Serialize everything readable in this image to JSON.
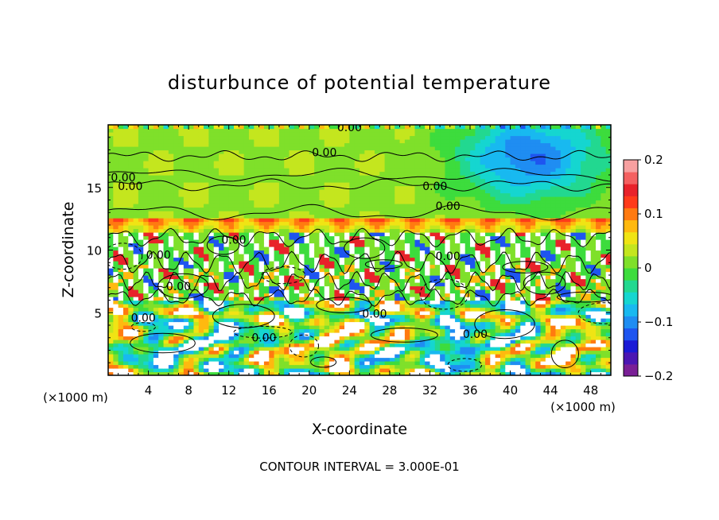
{
  "chart_data": {
    "type": "heatmap",
    "title": "disturbunce of potential temperature",
    "xlabel": "X-coordinate",
    "ylabel": "Z-coordinate",
    "x_unit_left": "(×1000 m)",
    "x_unit_right": "(×1000 m)",
    "footer": "CONTOUR INTERVAL = 3.000E-01",
    "xlim": [
      0,
      50
    ],
    "ylim": [
      0,
      20
    ],
    "x_ticks": [
      4,
      8,
      12,
      16,
      20,
      24,
      28,
      32,
      36,
      40,
      44,
      48
    ],
    "y_ticks": [
      5,
      10,
      15
    ],
    "colorbar": {
      "range": [
        -0.2,
        0.2
      ],
      "tick_values": [
        0.2,
        0.1,
        0,
        -0.1,
        -0.2
      ],
      "tick_labels": [
        "0.2",
        "0.1",
        "0",
        "−0.1",
        "−0.2"
      ],
      "colors": [
        "#7a1f96",
        "#4b16b3",
        "#1a1ad6",
        "#1e55f0",
        "#1f8df2",
        "#18b9f0",
        "#15d6d0",
        "#22d890",
        "#3ddc3d",
        "#7fe02a",
        "#c4e61e",
        "#f0e414",
        "#ffb90f",
        "#ff7a10",
        "#ff3a1a",
        "#e8222a",
        "#f46060",
        "#f7a0a0"
      ]
    },
    "contour_labels": [
      {
        "x": 24.0,
        "z": 19.5,
        "text": "0.00"
      },
      {
        "x": 21.5,
        "z": 17.5,
        "text": "0.00"
      },
      {
        "x": 1.5,
        "z": 15.5,
        "text": "0.00"
      },
      {
        "x": 2.2,
        "z": 14.8,
        "text": "0.00"
      },
      {
        "x": 32.5,
        "z": 14.8,
        "text": "0.00"
      },
      {
        "x": 33.8,
        "z": 13.2,
        "text": "0.00"
      },
      {
        "x": 12.5,
        "z": 10.5,
        "text": "0.00"
      },
      {
        "x": 5.0,
        "z": 9.3,
        "text": "0.00"
      },
      {
        "x": 33.8,
        "z": 9.2,
        "text": "0.00"
      },
      {
        "x": 7.0,
        "z": 6.8,
        "text": "0.00"
      },
      {
        "x": 26.5,
        "z": 4.6,
        "text": "0.00"
      },
      {
        "x": 3.5,
        "z": 4.3,
        "text": "0.00"
      },
      {
        "x": 36.5,
        "z": 3.0,
        "text": "0.00"
      },
      {
        "x": 15.5,
        "z": 2.7,
        "text": "0.00"
      }
    ],
    "bands": [
      {
        "z0": 0,
        "z1": 6,
        "level": "mixed"
      },
      {
        "z0": 6,
        "z1": 11.5,
        "level": 0.0
      },
      {
        "z0": 11.5,
        "z1": 12.5,
        "level": 0.1
      },
      {
        "z0": 12.5,
        "z1": 20,
        "level": 0.02
      }
    ]
  }
}
